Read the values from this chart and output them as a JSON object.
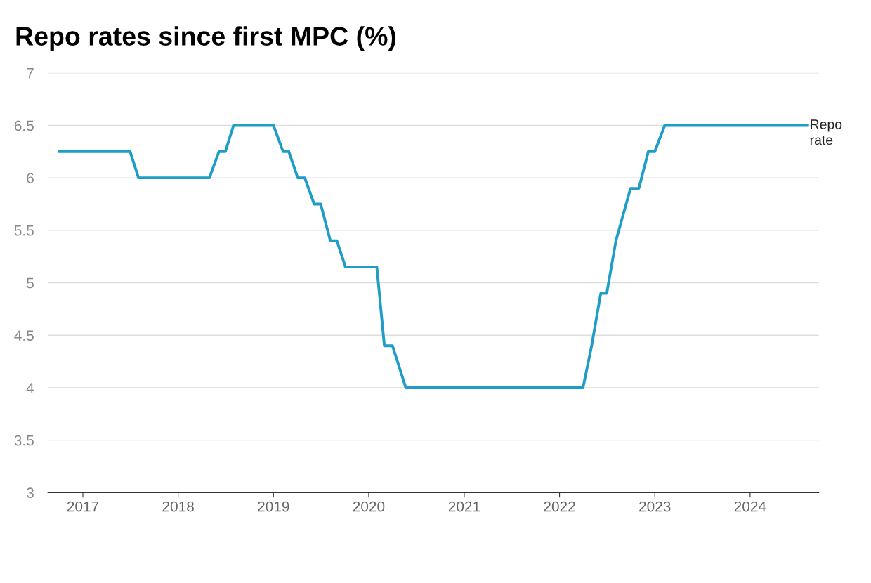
{
  "chart_data": {
    "type": "line",
    "title": "Repo rates since first MPC (%)",
    "x": [
      "2016-10-04",
      "2017-07-01",
      "2017-08-02",
      "2018-05-01",
      "2018-06-06",
      "2018-07-01",
      "2018-08-01",
      "2019-01-01",
      "2019-02-07",
      "2019-03-01",
      "2019-04-04",
      "2019-05-01",
      "2019-06-06",
      "2019-07-01",
      "2019-08-07",
      "2019-09-01",
      "2019-10-04",
      "2020-02-01",
      "2020-03-01",
      "2020-04-01",
      "2020-05-22",
      "2022-04-01",
      "2022-05-04",
      "2022-06-08",
      "2022-07-01",
      "2022-08-05",
      "2022-09-30",
      "2022-11-01",
      "2022-12-07",
      "2023-01-01",
      "2023-02-08",
      "2024-08-08"
    ],
    "series": [
      {
        "name": "Repo\nrate",
        "color": "#1f9dc6",
        "values": [
          6.25,
          6.25,
          6.0,
          6.0,
          6.25,
          6.25,
          6.5,
          6.5,
          6.25,
          6.25,
          6.0,
          6.0,
          5.75,
          5.75,
          5.4,
          5.4,
          5.15,
          5.15,
          4.4,
          4.4,
          4.0,
          4.0,
          4.4,
          4.9,
          4.9,
          5.4,
          5.9,
          5.9,
          6.25,
          6.25,
          6.5,
          6.5
        ]
      }
    ],
    "xlim": [
      "2016-08-20",
      "2024-09-20"
    ],
    "xticks": [
      {
        "value": "2017-01-01",
        "label": "2017"
      },
      {
        "value": "2018-01-01",
        "label": "2018"
      },
      {
        "value": "2019-01-01",
        "label": "2019"
      },
      {
        "value": "2020-01-01",
        "label": "2020"
      },
      {
        "value": "2021-01-01",
        "label": "2021"
      },
      {
        "value": "2022-01-01",
        "label": "2022"
      },
      {
        "value": "2023-01-01",
        "label": "2023"
      },
      {
        "value": "2024-01-01",
        "label": "2024"
      }
    ],
    "ylim": [
      3,
      7
    ],
    "yticks": [
      3,
      3.5,
      4,
      4.5,
      5,
      5.5,
      6,
      6.5,
      7
    ],
    "grid": "y",
    "legend": false,
    "marker": "none",
    "line_style": "solid"
  }
}
